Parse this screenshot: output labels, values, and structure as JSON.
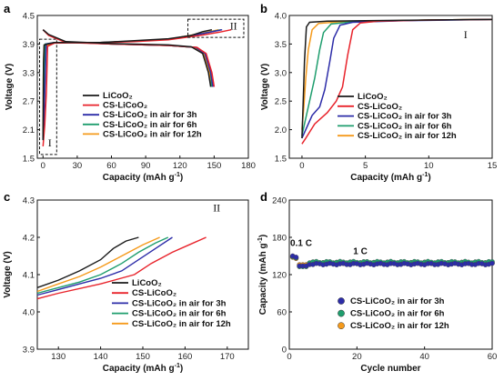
{
  "colors": {
    "LiCoO2": "#1a1a1a",
    "CS-LiCoO2": "#e8232b",
    "CS-LiCoO2 in air for 3h": "#2c2ca8",
    "CS-LiCoO2 in air for 6h": "#1f9e6e",
    "CS-LiCoO2 in air for 12h": "#f59a1b"
  },
  "chart_data": [
    {
      "panel": "a",
      "type": "line",
      "xlabel": "Capacity (mAh g",
      "xlabel_sup": "-1",
      "xlabel_close": ")",
      "ylabel": "Voltage (V)",
      "xlim": [
        -5,
        180
      ],
      "ylim": [
        1.5,
        4.5
      ],
      "xticks": [
        "0",
        "30",
        "60",
        "90",
        "120",
        "150",
        "180"
      ],
      "yticks": [
        "1.5",
        "2.1",
        "2.7",
        "3.3",
        "3.9",
        "4.5"
      ],
      "xtick_values": [
        0,
        30,
        60,
        90,
        120,
        150,
        180
      ],
      "ytick_values": [
        1.5,
        2.1,
        2.7,
        3.3,
        3.9,
        4.5
      ],
      "legend_position": "center-left",
      "annotations": [
        "I",
        "II"
      ],
      "legend": [
        "LiCoO₂",
        "CS-LiCoO₂",
        "CS-LiCoO₂ in air for 3h",
        "CS-LiCoO₂ in air for 6h",
        "CS-LiCoO₂ in air for 12h"
      ],
      "series": [
        {
          "key": "LiCoO2",
          "charge": [
            [
              0,
              1.88
            ],
            [
              0.4,
              3.5
            ],
            [
              1,
              3.88
            ],
            [
              10,
              3.93
            ],
            [
              50,
              3.93
            ],
            [
              80,
              3.97
            ],
            [
              110,
              4.01
            ],
            [
              130,
              4.08
            ],
            [
              140,
              4.16
            ],
            [
              148,
              4.2
            ]
          ],
          "discharge": [
            [
              0,
              4.2
            ],
            [
              5,
              4.1
            ],
            [
              20,
              3.95
            ],
            [
              60,
              3.91
            ],
            [
              110,
              3.88
            ],
            [
              130,
              3.84
            ],
            [
              140,
              3.7
            ],
            [
              145,
              3.3
            ],
            [
              147,
              3.0
            ]
          ]
        },
        {
          "key": "CS-LiCoO2",
          "charge": [
            [
              0,
              1.75
            ],
            [
              1.5,
              2.2
            ],
            [
              3,
              2.9
            ],
            [
              4,
              3.85
            ],
            [
              10,
              3.92
            ],
            [
              50,
              3.93
            ],
            [
              80,
              3.95
            ],
            [
              110,
              3.99
            ],
            [
              140,
              4.09
            ],
            [
              155,
              4.15
            ],
            [
              165,
              4.2
            ]
          ],
          "discharge": [
            [
              0,
              4.2
            ],
            [
              5,
              4.08
            ],
            [
              20,
              3.93
            ],
            [
              60,
              3.9
            ],
            [
              110,
              3.87
            ],
            [
              135,
              3.83
            ],
            [
              143,
              3.7
            ],
            [
              148,
              3.3
            ],
            [
              150,
              3.0
            ]
          ]
        },
        {
          "key": "CS-LiCoO2 in air for 3h",
          "charge": [
            [
              0,
              1.9
            ],
            [
              1,
              2.4
            ],
            [
              2.2,
              3.4
            ],
            [
              2.8,
              3.9
            ],
            [
              10,
              3.93
            ],
            [
              50,
              3.93
            ],
            [
              80,
              3.96
            ],
            [
              110,
              4.0
            ],
            [
              140,
              4.12
            ],
            [
              157,
              4.2
            ]
          ],
          "discharge": [
            [
              0,
              4.2
            ],
            [
              5,
              4.09
            ],
            [
              20,
              3.94
            ],
            [
              60,
              3.9
            ],
            [
              110,
              3.87
            ],
            [
              134,
              3.83
            ],
            [
              142,
              3.7
            ],
            [
              147,
              3.3
            ],
            [
              149,
              3.0
            ]
          ]
        },
        {
          "key": "CS-LiCoO2 in air for 6h",
          "charge": [
            [
              0,
              1.95
            ],
            [
              0.6,
              2.7
            ],
            [
              1.5,
              3.6
            ],
            [
              2,
              3.9
            ],
            [
              10,
              3.93
            ],
            [
              50,
              3.93
            ],
            [
              80,
              3.96
            ],
            [
              110,
              4.0
            ],
            [
              140,
              4.12
            ],
            [
              156,
              4.2
            ]
          ],
          "discharge": [
            [
              0,
              4.2
            ],
            [
              5,
              4.09
            ],
            [
              20,
              3.94
            ],
            [
              60,
              3.9
            ],
            [
              110,
              3.87
            ],
            [
              134,
              3.83
            ],
            [
              142,
              3.7
            ],
            [
              147,
              3.3
            ],
            [
              148,
              3.0
            ]
          ]
        },
        {
          "key": "CS-LiCoO2 in air for 12h",
          "charge": [
            [
              0,
              2.05
            ],
            [
              0.3,
              3.2
            ],
            [
              0.8,
              3.85
            ],
            [
              10,
              3.93
            ],
            [
              50,
              3.93
            ],
            [
              80,
              3.96
            ],
            [
              110,
              4.0
            ],
            [
              140,
              4.13
            ],
            [
              154,
              4.2
            ]
          ],
          "discharge": [
            [
              0,
              4.2
            ],
            [
              5,
              4.09
            ],
            [
              20,
              3.94
            ],
            [
              60,
              3.9
            ],
            [
              110,
              3.87
            ],
            [
              133,
              3.83
            ],
            [
              141,
              3.7
            ],
            [
              146,
              3.3
            ],
            [
              148,
              3.0
            ]
          ]
        }
      ]
    },
    {
      "panel": "b",
      "type": "line",
      "xlabel": "Capacity (mAh g",
      "xlabel_sup": "-1",
      "xlabel_close": ")",
      "ylabel": "Voltage (V)",
      "xlim": [
        -1,
        15
      ],
      "ylim": [
        1.5,
        4.0
      ],
      "xticks": [
        "0",
        "5",
        "10",
        "15"
      ],
      "yticks": [
        "1.5",
        "2.0",
        "2.5",
        "3.0",
        "3.5",
        "4.0"
      ],
      "xtick_values": [
        0,
        5,
        10,
        15
      ],
      "ytick_values": [
        1.5,
        2.0,
        2.5,
        3.0,
        3.5,
        4.0
      ],
      "legend_position": "bottom-left",
      "annotation": "I",
      "legend": [
        "LiCoO₂",
        "CS-LiCoO₂",
        "CS-LiCoO₂ in air for 3h",
        "CS-LiCoO₂ in air for 6h",
        "CS-LiCoO₂ in air for 12h"
      ],
      "series": [
        {
          "key": "LiCoO2",
          "values": [
            [
              0,
              1.85
            ],
            [
              0.1,
              2.5
            ],
            [
              0.2,
              3.2
            ],
            [
              0.35,
              3.8
            ],
            [
              0.6,
              3.88
            ],
            [
              2,
              3.9
            ],
            [
              5,
              3.91
            ],
            [
              10,
              3.92
            ],
            [
              15,
              3.93
            ]
          ]
        },
        {
          "key": "CS-LiCoO2",
          "values": [
            [
              0,
              1.75
            ],
            [
              0.3,
              1.85
            ],
            [
              1,
              2.1
            ],
            [
              2,
              2.3
            ],
            [
              2.7,
              2.5
            ],
            [
              3.2,
              2.75
            ],
            [
              3.6,
              3.3
            ],
            [
              4,
              3.75
            ],
            [
              4.6,
              3.87
            ],
            [
              6,
              3.9
            ],
            [
              10,
              3.92
            ],
            [
              15,
              3.93
            ]
          ]
        },
        {
          "key": "CS-LiCoO2 in air for 3h",
          "values": [
            [
              0,
              1.85
            ],
            [
              0.3,
              2.0
            ],
            [
              0.8,
              2.25
            ],
            [
              1.4,
              2.4
            ],
            [
              1.8,
              2.7
            ],
            [
              2.2,
              3.2
            ],
            [
              2.5,
              3.6
            ],
            [
              3,
              3.83
            ],
            [
              4,
              3.88
            ],
            [
              8,
              3.91
            ],
            [
              15,
              3.93
            ]
          ]
        },
        {
          "key": "CS-LiCoO2 in air for 6h",
          "values": [
            [
              0,
              1.9
            ],
            [
              0.2,
              2.1
            ],
            [
              0.6,
              2.5
            ],
            [
              1,
              2.9
            ],
            [
              1.4,
              3.4
            ],
            [
              1.7,
              3.7
            ],
            [
              2.3,
              3.85
            ],
            [
              4,
              3.89
            ],
            [
              10,
              3.92
            ],
            [
              15,
              3.93
            ]
          ]
        },
        {
          "key": "CS-LiCoO2 in air for 12h",
          "values": [
            [
              0,
              2.0
            ],
            [
              0.15,
              2.4
            ],
            [
              0.3,
              2.9
            ],
            [
              0.5,
              3.4
            ],
            [
              0.8,
              3.75
            ],
            [
              1.3,
              3.86
            ],
            [
              3,
              3.89
            ],
            [
              10,
              3.92
            ],
            [
              15,
              3.93
            ]
          ]
        }
      ]
    },
    {
      "panel": "c",
      "type": "line",
      "xlabel": "Capacity (mAh g",
      "xlabel_sup": "-1",
      "xlabel_close": ")",
      "ylabel": "Voltage (V)",
      "xlim": [
        125,
        175
      ],
      "ylim": [
        3.9,
        4.3
      ],
      "xticks": [
        "130",
        "140",
        "150",
        "160",
        "170"
      ],
      "yticks": [
        "3.9",
        "4.0",
        "4.1",
        "4.2",
        "4.3"
      ],
      "xtick_values": [
        130,
        140,
        150,
        160,
        170
      ],
      "ytick_values": [
        3.9,
        4.0,
        4.1,
        4.2,
        4.3
      ],
      "legend_position": "bottom-left",
      "annotation": "II",
      "legend": [
        "LiCoO₂",
        "CS-LiCoO₂",
        "CS-LiCoO₂ in air for 3h",
        "CS-LiCoO₂ in air for 6h",
        "CS-LiCoO₂ in air for 12h"
      ],
      "series": [
        {
          "key": "LiCoO2",
          "values": [
            [
              125,
              4.065
            ],
            [
              130,
              4.085
            ],
            [
              135,
              4.11
            ],
            [
              140,
              4.14
            ],
            [
              143,
              4.17
            ],
            [
              146,
              4.19
            ],
            [
              149,
              4.2
            ]
          ]
        },
        {
          "key": "CS-LiCoO2",
          "values": [
            [
              125,
              4.035
            ],
            [
              130,
              4.05
            ],
            [
              140,
              4.075
            ],
            [
              148,
              4.1
            ],
            [
              152,
              4.13
            ],
            [
              157,
              4.16
            ],
            [
              161,
              4.18
            ],
            [
              165,
              4.2
            ]
          ]
        },
        {
          "key": "CS-LiCoO2 in air for 3h",
          "values": [
            [
              125,
              4.045
            ],
            [
              130,
              4.06
            ],
            [
              135,
              4.075
            ],
            [
              140,
              4.09
            ],
            [
              145,
              4.11
            ],
            [
              149,
              4.14
            ],
            [
              153,
              4.17
            ],
            [
              157,
              4.2
            ]
          ]
        },
        {
          "key": "CS-LiCoO2 in air for 6h",
          "values": [
            [
              125,
              4.05
            ],
            [
              130,
              4.065
            ],
            [
              135,
              4.08
            ],
            [
              140,
              4.1
            ],
            [
              145,
              4.13
            ],
            [
              149,
              4.16
            ],
            [
              153,
              4.185
            ],
            [
              156,
              4.2
            ]
          ]
        },
        {
          "key": "CS-LiCoO2 in air for 12h",
          "values": [
            [
              125,
              4.055
            ],
            [
              130,
              4.075
            ],
            [
              135,
              4.095
            ],
            [
              140,
              4.12
            ],
            [
              145,
              4.15
            ],
            [
              150,
              4.18
            ],
            [
              154,
              4.2
            ]
          ]
        }
      ]
    },
    {
      "panel": "d",
      "type": "scatter",
      "xlabel": "Cycle number",
      "ylabel": "Capacity (mAh g",
      "ylabel_sup": "-1",
      "ylabel_close": ")",
      "xlim": [
        0,
        60
      ],
      "ylim": [
        0,
        240
      ],
      "xticks": [
        "0",
        "20",
        "40",
        "60"
      ],
      "yticks": [
        "0",
        "60",
        "120",
        "180",
        "240"
      ],
      "xtick_values": [
        0,
        20,
        40,
        60
      ],
      "ytick_values": [
        0,
        60,
        120,
        180,
        240
      ],
      "legend_position": "bottom-left",
      "annotations": {
        "rate1": "0.1 C",
        "rate2": "1 C"
      },
      "legend": [
        "CS-LiCoO₂ in air for 3h",
        "CS-LiCoO₂ in air for 6h",
        "CS-LiCoO₂ in air for 12h"
      ],
      "series": [
        {
          "key": "CS-LiCoO2 in air for 3h",
          "first_cycles": [
            150,
            148
          ],
          "after": 137
        },
        {
          "key": "CS-LiCoO2 in air for 6h",
          "first_cycles": [
            149,
            147
          ],
          "after": 140
        },
        {
          "key": "CS-LiCoO2 in air for 12h",
          "first_cycles": [
            148,
            146
          ],
          "after": 139
        }
      ]
    }
  ]
}
